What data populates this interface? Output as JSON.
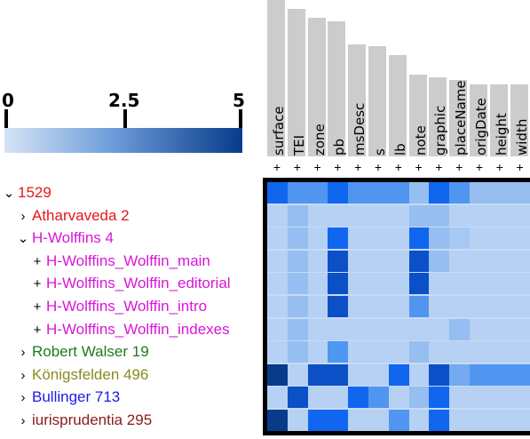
{
  "legend": {
    "ticks": [
      "0",
      "2.5",
      "5"
    ],
    "colors": {
      "min": "#d6e4f7",
      "mid": "#6e9dda",
      "max": "#083b8a"
    }
  },
  "columns": [
    {
      "label": "surface",
      "toggle": "+"
    },
    {
      "label": "TEI",
      "toggle": "+"
    },
    {
      "label": "zone",
      "toggle": "+"
    },
    {
      "label": "pb",
      "toggle": "+"
    },
    {
      "label": "msDesc",
      "toggle": "+"
    },
    {
      "label": "s",
      "toggle": "+"
    },
    {
      "label": "lb",
      "toggle": "+"
    },
    {
      "label": "note",
      "toggle": "+"
    },
    {
      "label": "graphic",
      "toggle": "+"
    },
    {
      "label": "placeName",
      "toggle": "+"
    },
    {
      "label": "origDate",
      "toggle": "+"
    },
    {
      "label": "height",
      "toggle": "+"
    },
    {
      "label": "width",
      "toggle": "+"
    }
  ],
  "tree": [
    {
      "toggle": "⌄",
      "label": "1529",
      "color": "#e8151a",
      "level": 0
    },
    {
      "toggle": "›",
      "label": "Atharvaveda 2",
      "color": "#e8151a",
      "level": 1
    },
    {
      "toggle": "⌄",
      "label": "H-Wolffins 4",
      "color": "#d916d9",
      "level": 1
    },
    {
      "toggle": "+",
      "label": "H-Wolffins_Wolffin_main",
      "color": "#d916d9",
      "level": 2
    },
    {
      "toggle": "+",
      "label": "H-Wolffins_Wolffin_editorial",
      "color": "#d916d9",
      "level": 2
    },
    {
      "toggle": "+",
      "label": "H-Wolffins_Wolffin_intro",
      "color": "#d916d9",
      "level": 2
    },
    {
      "toggle": "+",
      "label": "H-Wolffins_Wolffin_indexes",
      "color": "#d916d9",
      "level": 2
    },
    {
      "toggle": "›",
      "label": "Robert Walser 19",
      "color": "#1f7a1f",
      "level": 1
    },
    {
      "toggle": "›",
      "label": "Königsfelden 496",
      "color": "#8a8a1f",
      "level": 1
    },
    {
      "toggle": "›",
      "label": "Bullinger 713",
      "color": "#1a1ae6",
      "level": 1
    },
    {
      "toggle": "›",
      "label": "iurisprudentia 295",
      "color": "#8b1a1a",
      "level": 1
    }
  ],
  "heatmap": {
    "values": [
      [
        4,
        3,
        3,
        4,
        3,
        3,
        3,
        2,
        4,
        3,
        2,
        2,
        2
      ],
      [
        1,
        2,
        1,
        1,
        1,
        1,
        1,
        2,
        2,
        1,
        1,
        1,
        1
      ],
      [
        1,
        2,
        1,
        4,
        1,
        1,
        1,
        4,
        2,
        1.5,
        1,
        1,
        1
      ],
      [
        1,
        2,
        1,
        4.5,
        1,
        1,
        1,
        4.5,
        2,
        1,
        1,
        1,
        1
      ],
      [
        1,
        2,
        1,
        4.5,
        1,
        1,
        1,
        4.5,
        1,
        1,
        1,
        1,
        1
      ],
      [
        1,
        2,
        1,
        4.5,
        1,
        1,
        1,
        3,
        1,
        1,
        1,
        1,
        1
      ],
      [
        1,
        2,
        1,
        1,
        1,
        1,
        1,
        1,
        1,
        2,
        1,
        1,
        1
      ],
      [
        1,
        2,
        1,
        3,
        1,
        1,
        1,
        2,
        1,
        1,
        1,
        1,
        1
      ],
      [
        5,
        1,
        4.5,
        4.5,
        1,
        1,
        4,
        1,
        4.5,
        2.5,
        3,
        3,
        3
      ],
      [
        1,
        4.5,
        1,
        1,
        4,
        3,
        1,
        2,
        4,
        1,
        1,
        1,
        1
      ],
      [
        5,
        1,
        4,
        4,
        1,
        1,
        3,
        1,
        4,
        1,
        1,
        1,
        1
      ]
    ]
  }
}
